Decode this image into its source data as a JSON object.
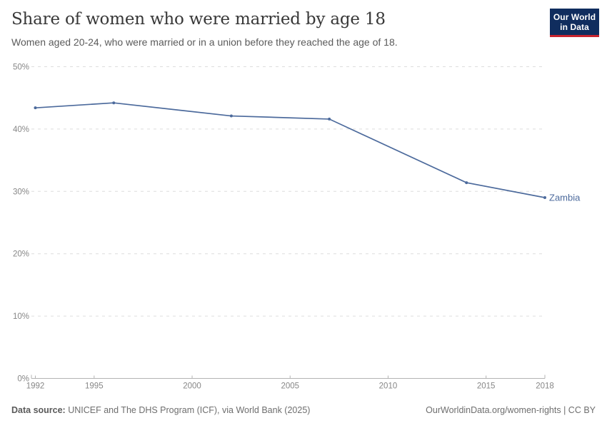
{
  "header": {
    "title": "Share of women who were married by age 18",
    "subtitle": "Women aged 20-24, who were married or in a union before they reached the age of 18."
  },
  "logo": {
    "line1": "Our World",
    "line2": "in Data",
    "background_color": "#102D5E",
    "accent_color": "#C8242E"
  },
  "chart_data": {
    "type": "line",
    "title": "Share of women who were married by age 18",
    "xlabel": "",
    "ylabel": "",
    "xlim": [
      1991.8,
      2018
    ],
    "ylim": [
      0,
      50
    ],
    "grid": "horizontal-dashed",
    "line_color": "#4C6A9C",
    "series": [
      {
        "name": "Zambia",
        "x": [
          1992,
          1996,
          2002,
          2007,
          2014,
          2018
        ],
        "values": [
          43.4,
          44.2,
          42.1,
          41.6,
          31.4,
          29.0
        ]
      }
    ],
    "entity_label": "Zambia",
    "x_axis": {
      "tick_years": [
        1992,
        1995,
        2000,
        2005,
        2010,
        2015,
        2018
      ],
      "tick_labels": [
        "1992",
        "1995",
        "2000",
        "2005",
        "2010",
        "2015",
        "2018"
      ]
    },
    "y_axis": {
      "tick_values": [
        0,
        10,
        20,
        30,
        40,
        50
      ],
      "tick_labels": [
        "0%",
        "10%",
        "20%",
        "30%",
        "40%",
        "50%"
      ]
    }
  },
  "footer": {
    "source_label": "Data source:",
    "source_text": " UNICEF and The DHS Program (ICF), via World Bank (2025)",
    "citation": "OurWorldinData.org/women-rights",
    "separator": " | ",
    "license": "CC BY"
  }
}
